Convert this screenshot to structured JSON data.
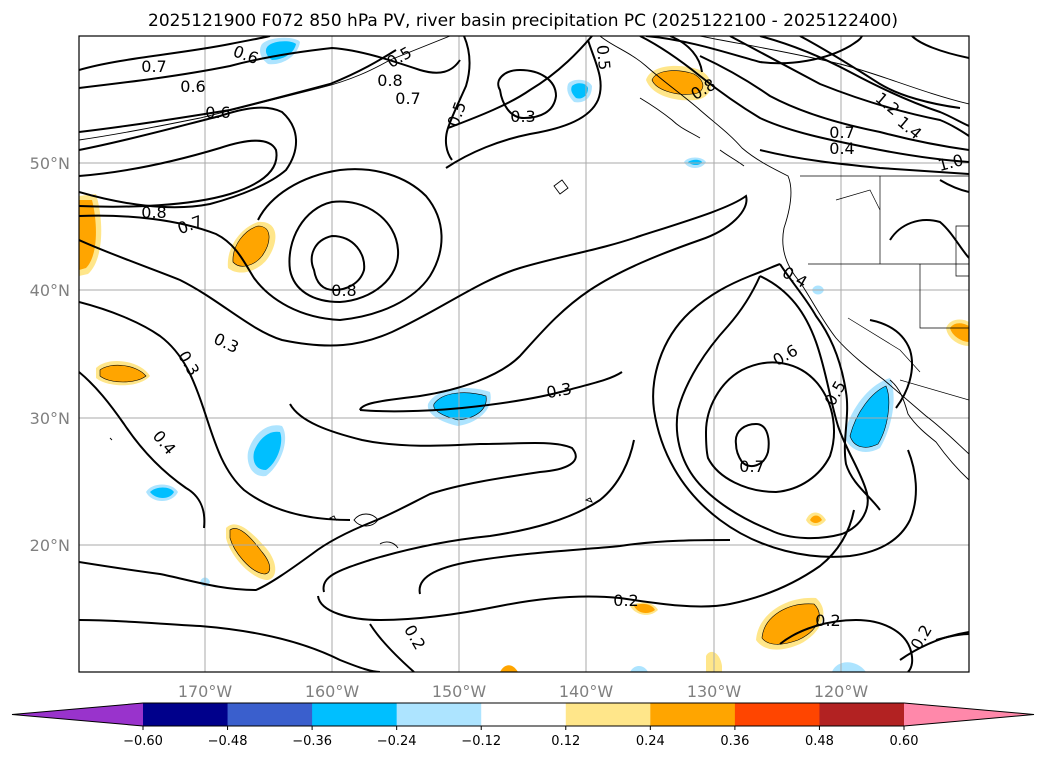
{
  "map": {
    "title": "2025121900 F072 850 hPa PV, river basin precipitation PC (2025122100 - 2025122400)",
    "lon_labels": [
      "170°W",
      "160°W",
      "150°W",
      "140°W",
      "130°W",
      "120°W"
    ],
    "lat_labels": [
      "50°N",
      "40°N",
      "30°N",
      "20°N"
    ],
    "contour_labels": [
      "0.7",
      "0.6",
      "0.6",
      "0.8",
      "0.7",
      "0.5",
      "0.6",
      "0.8",
      "0.7",
      "0.8",
      "0.3",
      "0.3",
      "0.3",
      "0.4",
      "0.3",
      "0.5",
      "0.5",
      "0.8",
      "0.7",
      "0.4",
      "1.0",
      "1.2",
      "1.4",
      "0.4",
      "0.6",
      "0.5",
      "0.7",
      "0.2",
      "0.2",
      "0.2",
      "0.2"
    ],
    "colorbar": {
      "ticks": [
        "−0.60",
        "−0.48",
        "−0.36",
        "−0.24",
        "−0.12",
        "0.12",
        "0.24",
        "0.36",
        "0.48",
        "0.60"
      ],
      "colors": [
        "#9933cc",
        "#00008b",
        "#3a5fcd",
        "#00bfff",
        "#ade4ff",
        "#ffffff",
        "#ffe68a",
        "#ffa500",
        "#ff4500",
        "#b22222",
        "#ff88aa"
      ]
    },
    "shading_colors": {
      "pos_low": "#ffe68a",
      "pos_mid": "#ffa500",
      "neg_low": "#ade4ff",
      "neg_mid": "#00bfff"
    }
  }
}
